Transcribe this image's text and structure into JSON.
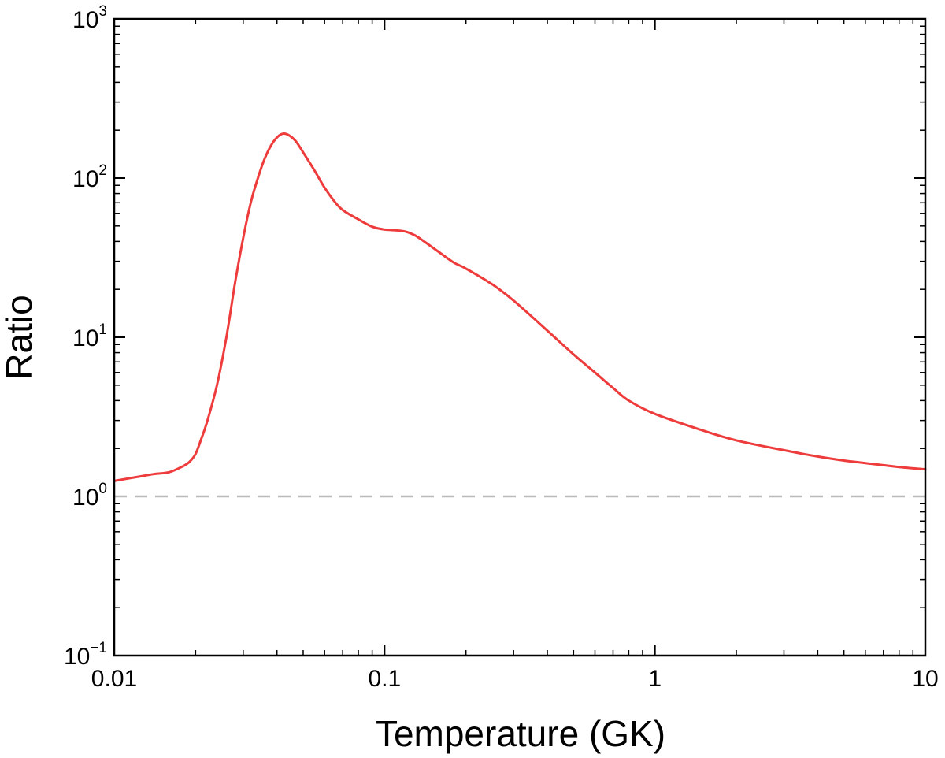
{
  "chart_data": {
    "type": "line",
    "xlabel": "Temperature (GK)",
    "ylabel": "Ratio",
    "xscale": "log",
    "yscale": "log",
    "xlim": [
      0.01,
      10
    ],
    "ylim": [
      0.1,
      1000
    ],
    "x_ticks": [
      {
        "value": 0.01,
        "label": "0.01"
      },
      {
        "value": 0.1,
        "label": "0.1"
      },
      {
        "value": 1,
        "label": "1"
      },
      {
        "value": 10,
        "label": "10"
      }
    ],
    "y_ticks": [
      {
        "value": 0.1,
        "base": "10",
        "exp": "−1"
      },
      {
        "value": 1,
        "base": "10",
        "exp": "0"
      },
      {
        "value": 10,
        "base": "10",
        "exp": "1"
      },
      {
        "value": 100,
        "base": "10",
        "exp": "2"
      },
      {
        "value": 1000,
        "base": "10",
        "exp": "3"
      }
    ],
    "reference_line": {
      "y": 1,
      "color": "#bbbbbb",
      "style": "dashed"
    },
    "series": [
      {
        "color": "#ee3b3b",
        "points": [
          [
            0.01,
            1.25
          ],
          [
            0.012,
            1.32
          ],
          [
            0.014,
            1.38
          ],
          [
            0.016,
            1.42
          ],
          [
            0.018,
            1.55
          ],
          [
            0.019,
            1.65
          ],
          [
            0.02,
            1.85
          ],
          [
            0.021,
            2.3
          ],
          [
            0.022,
            2.9
          ],
          [
            0.024,
            5.0
          ],
          [
            0.026,
            10.0
          ],
          [
            0.028,
            22.0
          ],
          [
            0.03,
            42.0
          ],
          [
            0.032,
            70.0
          ],
          [
            0.034,
            100.0
          ],
          [
            0.036,
            132.0
          ],
          [
            0.038,
            160.0
          ],
          [
            0.04,
            180.0
          ],
          [
            0.042,
            190.0
          ],
          [
            0.044,
            187.0
          ],
          [
            0.047,
            170.0
          ],
          [
            0.05,
            145.0
          ],
          [
            0.055,
            112.0
          ],
          [
            0.06,
            87.0
          ],
          [
            0.065,
            72.0
          ],
          [
            0.07,
            63.0
          ],
          [
            0.08,
            55.0
          ],
          [
            0.09,
            49.5
          ],
          [
            0.1,
            47.5
          ],
          [
            0.11,
            47.0
          ],
          [
            0.12,
            46.0
          ],
          [
            0.13,
            43.5
          ],
          [
            0.14,
            40.0
          ],
          [
            0.16,
            34.0
          ],
          [
            0.18,
            29.5
          ],
          [
            0.2,
            27.0
          ],
          [
            0.25,
            21.5
          ],
          [
            0.3,
            17.0
          ],
          [
            0.4,
            11.0
          ],
          [
            0.5,
            7.8
          ],
          [
            0.6,
            6.0
          ],
          [
            0.7,
            4.8
          ],
          [
            0.8,
            4.0
          ],
          [
            1.0,
            3.3
          ],
          [
            1.5,
            2.6
          ],
          [
            2.0,
            2.25
          ],
          [
            3.0,
            1.95
          ],
          [
            4.0,
            1.78
          ],
          [
            5.0,
            1.68
          ],
          [
            6.0,
            1.62
          ],
          [
            7.0,
            1.57
          ],
          [
            8.0,
            1.53
          ],
          [
            10.0,
            1.48
          ]
        ]
      }
    ]
  }
}
